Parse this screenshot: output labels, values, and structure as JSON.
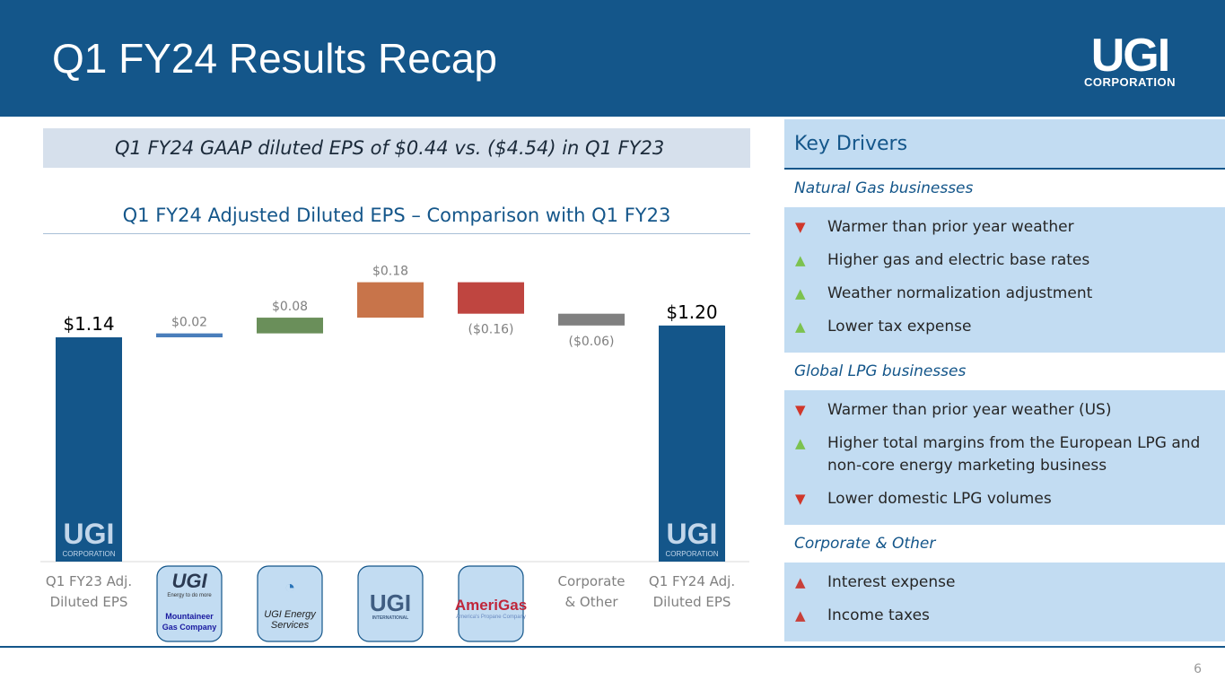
{
  "header": {
    "title": "Q1 FY24 Results Recap",
    "logo": "UGI CORPORATION"
  },
  "gaap_banner": "Q1 FY24 GAAP diluted EPS of $0.44 vs. ($4.54) in Q1 FY23",
  "chart_data": {
    "type": "waterfall",
    "title": "Q1 FY24 Adjusted Diluted EPS – Comparison with Q1 FY23",
    "categories": [
      "Q1 FY23 Adj. Diluted EPS",
      "UGI Utilities / Mountaineer Gas Company",
      "UGI Energy Services",
      "UGI International",
      "AmeriGas",
      "Corporate & Other",
      "Q1 FY24 Adj. Diluted EPS"
    ],
    "category_text": [
      [
        "Q1 FY23 Adj.",
        "Diluted EPS"
      ],
      null,
      null,
      null,
      null,
      [
        "Corporate",
        "& Other"
      ],
      [
        "Q1 FY24 Adj.",
        "Diluted EPS"
      ]
    ],
    "values": [
      1.14,
      0.02,
      0.08,
      0.18,
      -0.16,
      -0.06,
      1.2
    ],
    "kinds": [
      "total",
      "delta",
      "delta",
      "delta",
      "delta",
      "delta",
      "total"
    ],
    "labels": [
      "$1.14",
      "$0.02",
      "$0.08",
      "$0.18",
      "($0.16)",
      "($0.06)",
      "$1.20"
    ],
    "colors": [
      "#14568a",
      "#4a7ebb",
      "#6a8f5a",
      "#c8744a",
      "#bf4540",
      "#808080",
      "#14568a"
    ],
    "ylim": [
      0,
      1.45
    ],
    "grid": false
  },
  "logos": {
    "utilities": "UGI",
    "utilities_tag": "Energy to do more",
    "mountaineer": "Mountaineer Gas Company",
    "energy_services": "UGI Energy Services",
    "international": "UGI",
    "international_tag": "INTERNATIONAL",
    "amerigas": "AmeriGas",
    "amerigas_tag": "America's Propane Company",
    "bar_logo": "UGI",
    "bar_logo_sub": "CORPORATION"
  },
  "drivers": {
    "title": "Key Drivers",
    "sections": [
      {
        "name": "Natural Gas businesses",
        "items": [
          {
            "dir": "down",
            "text": "Warmer than prior year weather"
          },
          {
            "dir": "up",
            "text": "Higher gas and electric base rates"
          },
          {
            "dir": "up",
            "text": "Weather normalization adjustment"
          },
          {
            "dir": "up",
            "text": "Lower tax expense"
          }
        ]
      },
      {
        "name": "Global LPG businesses",
        "items": [
          {
            "dir": "down",
            "text": "Warmer than prior year weather (US)"
          },
          {
            "dir": "up",
            "text": "Higher total margins from the European LPG and non-core energy marketing business"
          },
          {
            "dir": "down",
            "text": "Lower domestic LPG volumes"
          }
        ]
      },
      {
        "name": "Corporate & Other",
        "items": [
          {
            "dir": "up-red",
            "text": "Interest expense"
          },
          {
            "dir": "up-red",
            "text": "Income taxes"
          }
        ]
      }
    ]
  },
  "page_number": "6"
}
